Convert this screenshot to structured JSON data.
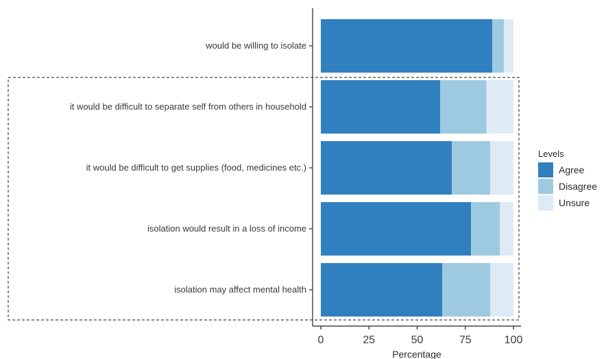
{
  "chart_data": {
    "type": "bar",
    "orientation": "horizontal",
    "stacked": true,
    "categories": [
      "would be willing to isolate",
      "it would be difficult to separate self from others in household",
      "it would be difficult to get supplies (food, medicines etc.)",
      "isolation would result in a loss of income",
      "isolation may affect mental health"
    ],
    "series": [
      {
        "name": "Agree",
        "color": "#3080c0",
        "values": [
          89,
          62,
          68,
          78,
          63
        ]
      },
      {
        "name": "Disagree",
        "color": "#9ecae1",
        "values": [
          6,
          24,
          20,
          15,
          25
        ]
      },
      {
        "name": "Unsure",
        "color": "#deebf7",
        "values": [
          5,
          14,
          12,
          7,
          12
        ]
      }
    ],
    "xlabel": "Percentage",
    "ylabel": "",
    "xlim": [
      0,
      100
    ],
    "xticks": [
      "0",
      "25",
      "50",
      "75",
      "100"
    ],
    "legend": {
      "title": "Levels",
      "position": "right"
    },
    "grid": false,
    "annotation": "dashed box around the last four statements"
  }
}
